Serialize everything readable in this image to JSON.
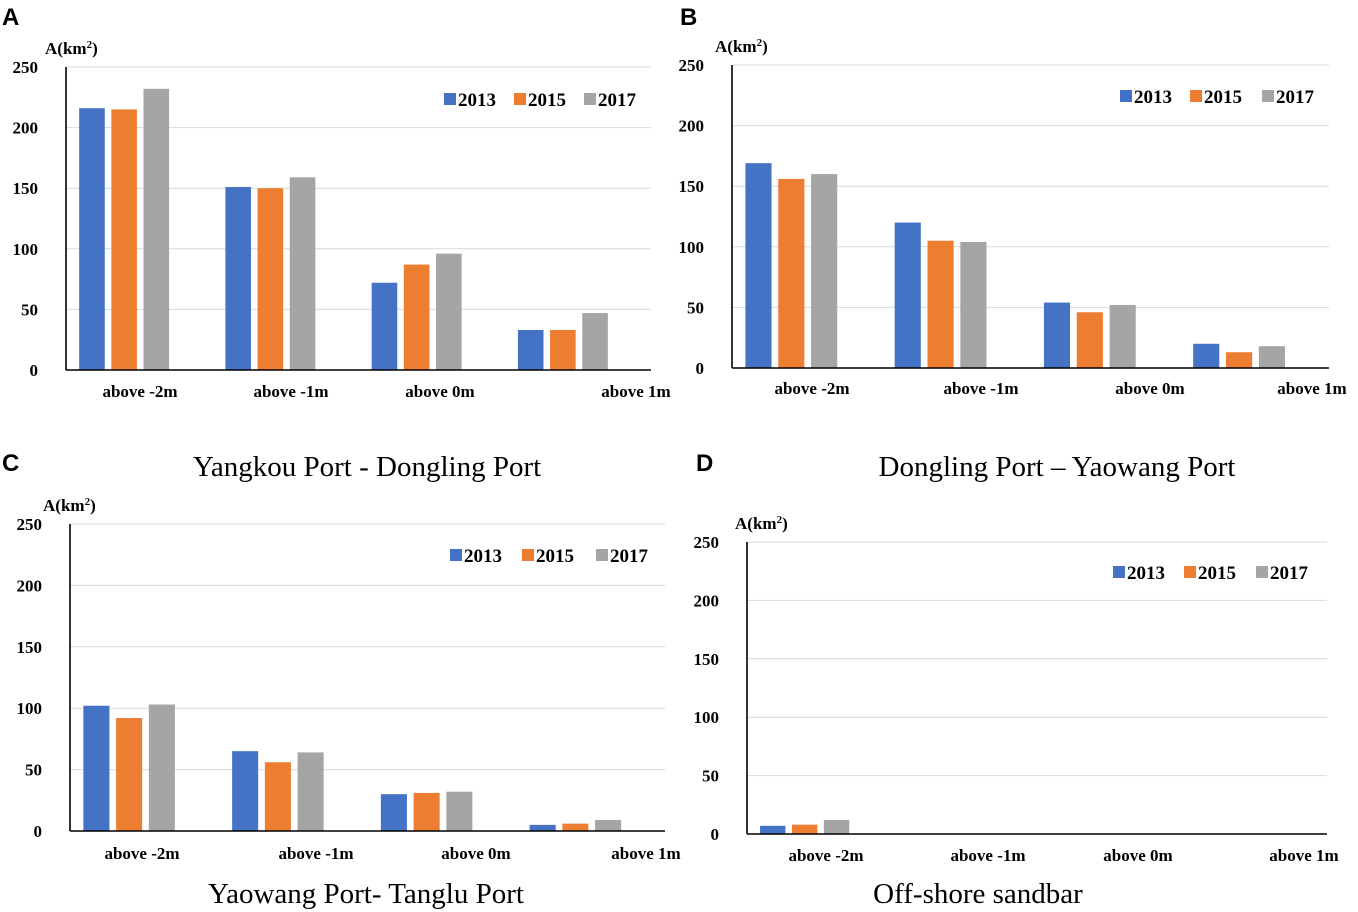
{
  "colors": {
    "2013": "#4472C4",
    "2015": "#ED7D31",
    "2017": "#A5A5A5",
    "grid": "#d9d9d9",
    "axis": "#000000"
  },
  "chart_data": [
    {
      "panel": "A",
      "type": "bar",
      "ylabel": "A(km2)",
      "ylabel_base": "A(km",
      "ylabel_sup": "2",
      "ylabel_close": ")",
      "ylim": [
        0,
        250
      ],
      "yticks": [
        0,
        50,
        100,
        150,
        200,
        250
      ],
      "categories": [
        "above -2m",
        "above -1m",
        "above 0m",
        "above 1m"
      ],
      "series": [
        {
          "name": "2013",
          "values": [
            216,
            151,
            72,
            33
          ]
        },
        {
          "name": "2015",
          "values": [
            215,
            150,
            87,
            33
          ]
        },
        {
          "name": "2017",
          "values": [
            232,
            159,
            96,
            47
          ]
        }
      ],
      "caption": "Yangkou Port - Dongling Port"
    },
    {
      "panel": "B",
      "type": "bar",
      "ylabel": "A(km2)",
      "ylabel_base": "A(km",
      "ylabel_sup": "2",
      "ylabel_close": ")",
      "ylim": [
        0,
        250
      ],
      "yticks": [
        0,
        50,
        100,
        150,
        200,
        250
      ],
      "categories": [
        "above -2m",
        "above -1m",
        "above 0m",
        "above 1m"
      ],
      "series": [
        {
          "name": "2013",
          "values": [
            169,
            120,
            54,
            20
          ]
        },
        {
          "name": "2015",
          "values": [
            156,
            105,
            46,
            13
          ]
        },
        {
          "name": "2017",
          "values": [
            160,
            104,
            52,
            18
          ]
        }
      ],
      "caption": "Dongling Port – Yaowang Port"
    },
    {
      "panel": "C",
      "type": "bar",
      "ylabel": "A(km2)",
      "ylabel_base": "A(km",
      "ylabel_sup": "2",
      "ylabel_close": ")",
      "ylim": [
        0,
        250
      ],
      "yticks": [
        0,
        50,
        100,
        150,
        200,
        250
      ],
      "categories": [
        "above -2m",
        "above -1m",
        "above 0m",
        "above 1m"
      ],
      "series": [
        {
          "name": "2013",
          "values": [
            102,
            65,
            30,
            5
          ]
        },
        {
          "name": "2015",
          "values": [
            92,
            56,
            31,
            6
          ]
        },
        {
          "name": "2017",
          "values": [
            103,
            64,
            32,
            9
          ]
        }
      ],
      "caption": "Yaowang Port- Tanglu Port"
    },
    {
      "panel": "D",
      "type": "bar",
      "ylabel": "A(km2)",
      "ylabel_base": "A(km",
      "ylabel_sup": "2",
      "ylabel_close": ")",
      "ylim": [
        0,
        250
      ],
      "yticks": [
        0,
        50,
        100,
        150,
        200,
        250
      ],
      "categories": [
        "above -2m",
        "above -1m",
        "above 0m",
        "above 1m"
      ],
      "series": [
        {
          "name": "2013",
          "values": [
            7,
            0,
            0,
            0
          ]
        },
        {
          "name": "2015",
          "values": [
            8,
            0,
            0,
            0
          ]
        },
        {
          "name": "2017",
          "values": [
            12,
            0,
            0,
            0
          ]
        }
      ],
      "caption": "Off-shore sandbar"
    }
  ]
}
